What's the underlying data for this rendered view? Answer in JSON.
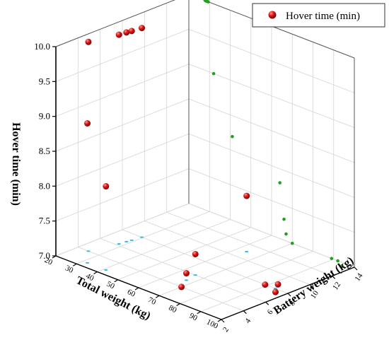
{
  "chart_data": {
    "type": "scatter3d",
    "title": "",
    "xlabel": "Total weight (kg)",
    "ylabel": "Battery weight (kg)",
    "zlabel": "Hover time (min)",
    "xlim": [
      20,
      100
    ],
    "ylim": [
      2,
      14
    ],
    "zlim": [
      7.0,
      10.0
    ],
    "x_ticks": [
      "20",
      "30",
      "40",
      "50",
      "60",
      "70",
      "80",
      "90",
      "100"
    ],
    "y_ticks": [
      "2",
      "4",
      "6",
      "8",
      "10",
      "12",
      "14"
    ],
    "z_ticks": [
      "7.0",
      "7.5",
      "8.0",
      "8.5",
      "9.0",
      "9.5",
      "10.0"
    ],
    "grid": true,
    "legend_position": "top-right",
    "legend": [
      "Hover time (min)"
    ],
    "colors": {
      "main": "#cc1111",
      "projection_xz": "#22a022",
      "projection_xy": "#33bbee",
      "axis": "#000000",
      "grid": "#d4d4d4"
    },
    "series": [
      {
        "name": "Hover time (min)",
        "points": [
          {
            "x": 25,
            "y": 4.0,
            "z": 10.0
          },
          {
            "x": 28,
            "y": 6.2,
            "z": 10.0
          },
          {
            "x": 28.4,
            "y": 6.8,
            "z": 10.0
          },
          {
            "x": 28.8,
            "y": 7.2,
            "z": 10.0
          },
          {
            "x": 29.4,
            "y": 8.0,
            "z": 10.0
          },
          {
            "x": 32,
            "y": 2.6,
            "z": 9.0
          },
          {
            "x": 41,
            "y": 2.6,
            "z": 8.2
          },
          {
            "x": 64,
            "y": 11.0,
            "z": 7.8
          },
          {
            "x": 66,
            "y": 6.0,
            "z": 7.3
          },
          {
            "x": 67,
            "y": 5.0,
            "z": 7.1
          },
          {
            "x": 70,
            "y": 4.0,
            "z": 7.0
          },
          {
            "x": 89,
            "y": 8.0,
            "z": 7.0
          },
          {
            "x": 92,
            "y": 8.6,
            "z": 7.0
          },
          {
            "x": 94,
            "y": 8.0,
            "z": 6.95
          }
        ]
      }
    ]
  }
}
